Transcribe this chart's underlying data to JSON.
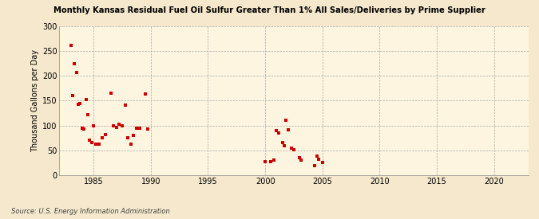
{
  "title": "Monthly Kansas Residual Fuel Oil Sulfur Greater Than 1% All Sales/Deliveries by Prime Supplier",
  "ylabel": "Thousand Gallons per Day",
  "source": "Source: U.S. Energy Information Administration",
  "background_color": "#f5e8cc",
  "plot_background_color": "#fdf5e0",
  "marker_color": "#cc0000",
  "marker": "s",
  "marker_size": 3.5,
  "xlim": [
    1982,
    2023
  ],
  "ylim": [
    0,
    300
  ],
  "xticks": [
    1985,
    1990,
    1995,
    2000,
    2005,
    2010,
    2015,
    2020
  ],
  "yticks": [
    0,
    50,
    100,
    150,
    200,
    250,
    300
  ],
  "data_x": [
    1983.0,
    1983.17,
    1983.33,
    1983.5,
    1983.67,
    1983.83,
    1984.0,
    1984.17,
    1984.33,
    1984.5,
    1984.67,
    1984.83,
    1985.0,
    1985.17,
    1985.5,
    1985.75,
    1986.0,
    1986.5,
    1986.75,
    1987.0,
    1987.25,
    1987.5,
    1987.75,
    1988.0,
    1988.25,
    1988.5,
    1988.75,
    1989.0,
    1989.5,
    1989.75,
    2000.0,
    2000.5,
    2000.75,
    2001.0,
    2001.17,
    2001.5,
    2001.67,
    2001.83,
    2002.0,
    2002.33,
    2002.5,
    2003.0,
    2003.17,
    2004.33,
    2004.5,
    2004.67,
    2005.0
  ],
  "data_y": [
    262,
    161,
    225,
    207,
    142,
    145,
    94,
    93,
    152,
    122,
    70,
    65,
    100,
    63,
    62,
    75,
    82,
    165,
    99,
    97,
    102,
    100,
    141,
    75,
    63,
    80,
    95,
    94,
    163,
    93,
    28,
    28,
    30,
    90,
    85,
    65,
    60,
    110,
    92,
    55,
    52,
    35,
    30,
    20,
    38,
    32,
    25
  ]
}
